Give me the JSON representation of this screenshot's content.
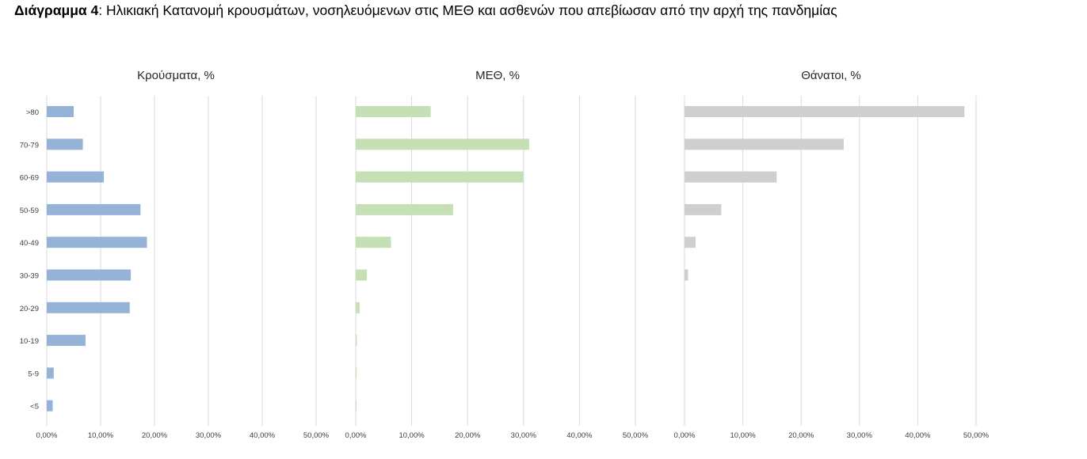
{
  "figure_title": {
    "label": "Διάγραμμα 4",
    "text": ": Ηλικιακή Κατανομή κρουσμάτων, νοσηλευόμενων στις ΜΕΘ και ασθενών που απεβίωσαν από την αρχή της πανδημίας"
  },
  "categories": [
    ">80",
    "70-79",
    "60-69",
    "50-59",
    "40-49",
    "30-39",
    "20-29",
    "10-19",
    "5-9",
    "<5"
  ],
  "chart_data": [
    {
      "type": "bar",
      "orientation": "horizontal",
      "title": "Κρούσματα, %",
      "categories": [
        ">80",
        "70-79",
        "60-69",
        "50-59",
        "40-49",
        "30-39",
        "20-29",
        "10-19",
        "5-9",
        "<5"
      ],
      "values": [
        5.0,
        6.7,
        10.6,
        17.4,
        18.6,
        15.6,
        15.4,
        7.2,
        1.3,
        1.1
      ],
      "xlim": [
        0,
        50
      ],
      "ticks": [
        "0,00%",
        "10,00%",
        "20,00%",
        "30,00%",
        "40,00%",
        "50,00%"
      ],
      "grid": true,
      "color": "#94b3d7"
    },
    {
      "type": "bar",
      "orientation": "horizontal",
      "title": "ΜΕΘ, %",
      "categories": [
        ">80",
        "70-79",
        "60-69",
        "50-59",
        "40-49",
        "30-39",
        "20-29",
        "10-19",
        "5-9",
        "<5"
      ],
      "values": [
        13.4,
        31.0,
        30.0,
        17.4,
        6.3,
        2.0,
        0.7,
        0.2,
        0.05,
        0.05
      ],
      "xlim": [
        0,
        50
      ],
      "ticks": [
        "0,00%",
        "10,00%",
        "20,00%",
        "30,00%",
        "40,00%",
        "50,00%"
      ],
      "grid": true,
      "color": "#c5e0b4"
    },
    {
      "type": "bar",
      "orientation": "horizontal",
      "title": "Θάνατοι, %",
      "categories": [
        ">80",
        "70-79",
        "60-69",
        "50-59",
        "40-49",
        "30-39",
        "20-29",
        "10-19",
        "5-9",
        "<5"
      ],
      "values": [
        48.0,
        27.3,
        15.8,
        6.3,
        1.9,
        0.6,
        0,
        0,
        0,
        0
      ],
      "xlim": [
        0,
        50
      ],
      "ticks": [
        "0,00%",
        "10,00%",
        "20,00%",
        "30,00%",
        "40,00%",
        "50,00%"
      ],
      "grid": true,
      "color": "#d0cece"
    }
  ]
}
